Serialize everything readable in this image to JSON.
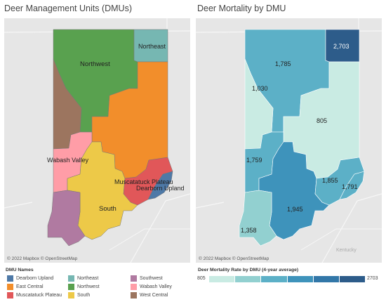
{
  "left_panel": {
    "title": "Deer Management Units (DMUs)",
    "credit": "© 2022 Mapbox © OpenStreetMap",
    "labels": {
      "northwest": "Northwest",
      "northeast": "Northeast",
      "wabash": "Wabash Valley",
      "muscatatuck": "Muscatatuck Plateau",
      "dearborn": "Dearborn Upland",
      "south": "South"
    }
  },
  "right_panel": {
    "title": "Deer Mortality by DMU",
    "credit": "© 2022 Mapbox © OpenStreetMap",
    "basemap_label": "Kentucky",
    "values": {
      "northeast": "2,703",
      "northwest": "1,785",
      "west_central": "1,030",
      "east_central": "805",
      "wabash": "1,759",
      "muscatatuck": "1,855",
      "dearborn": "1,791",
      "south": "1,945",
      "southwest": "1,358"
    }
  },
  "legend": {
    "names_title": "DMU Names",
    "items": [
      {
        "label": "Dearborn Upland",
        "color": "#4e79a7"
      },
      {
        "label": "East Central",
        "color": "#f28e2b"
      },
      {
        "label": "Muscatatuck Plateau",
        "color": "#e15759"
      },
      {
        "label": "Northeast",
        "color": "#76b7b2"
      },
      {
        "label": "Northwest",
        "color": "#59a14f"
      },
      {
        "label": "South",
        "color": "#edc948"
      },
      {
        "label": "Southwest",
        "color": "#b07aa1"
      },
      {
        "label": "Wabash Valley",
        "color": "#ff9da7"
      },
      {
        "label": "West Central",
        "color": "#9c755f"
      }
    ],
    "rate_title": "Deer Mortality Rate by DMU (4-year average)",
    "rate_min": "805",
    "rate_max": "2703",
    "rate_colors": [
      "#c9ebe3",
      "#92d0d0",
      "#5cb0c7",
      "#3e93bb",
      "#3277a8",
      "#2d5c8a"
    ]
  }
}
